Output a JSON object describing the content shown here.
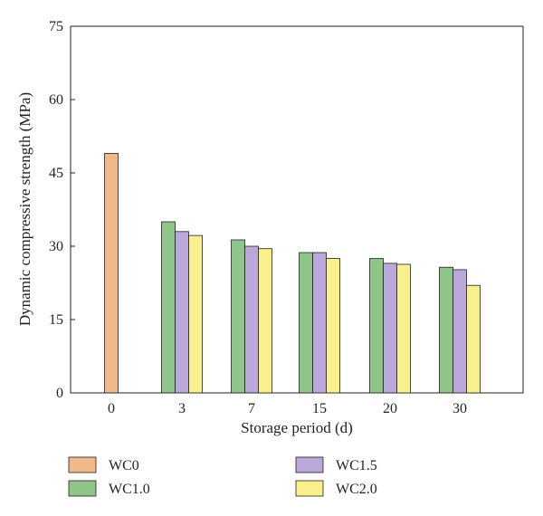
{
  "chart_data": {
    "type": "bar",
    "title": "",
    "xlabel": "Storage period (d)",
    "ylabel": "Dynamic compressive strength (MPa)",
    "ylim": [
      0,
      75
    ],
    "yticks": [
      "0",
      "15",
      "30",
      "45",
      "60",
      "75"
    ],
    "categories": [
      "0",
      "3",
      "7",
      "15",
      "20",
      "30"
    ],
    "grid": false,
    "legend": "bottom",
    "series": [
      {
        "name": "WC0",
        "color": "#f0b98a",
        "values": [
          49.0,
          null,
          null,
          null,
          null,
          null
        ]
      },
      {
        "name": "WC1.0",
        "color": "#8fc589",
        "values": [
          null,
          35.0,
          31.3,
          28.7,
          27.5,
          25.7
        ]
      },
      {
        "name": "WC1.5",
        "color": "#b9a8d9",
        "values": [
          null,
          33.0,
          30.0,
          28.7,
          26.5,
          25.2
        ]
      },
      {
        "name": "WC2.0",
        "color": "#f8f08a",
        "values": [
          null,
          32.2,
          29.5,
          27.5,
          26.3,
          22.0
        ]
      }
    ]
  }
}
